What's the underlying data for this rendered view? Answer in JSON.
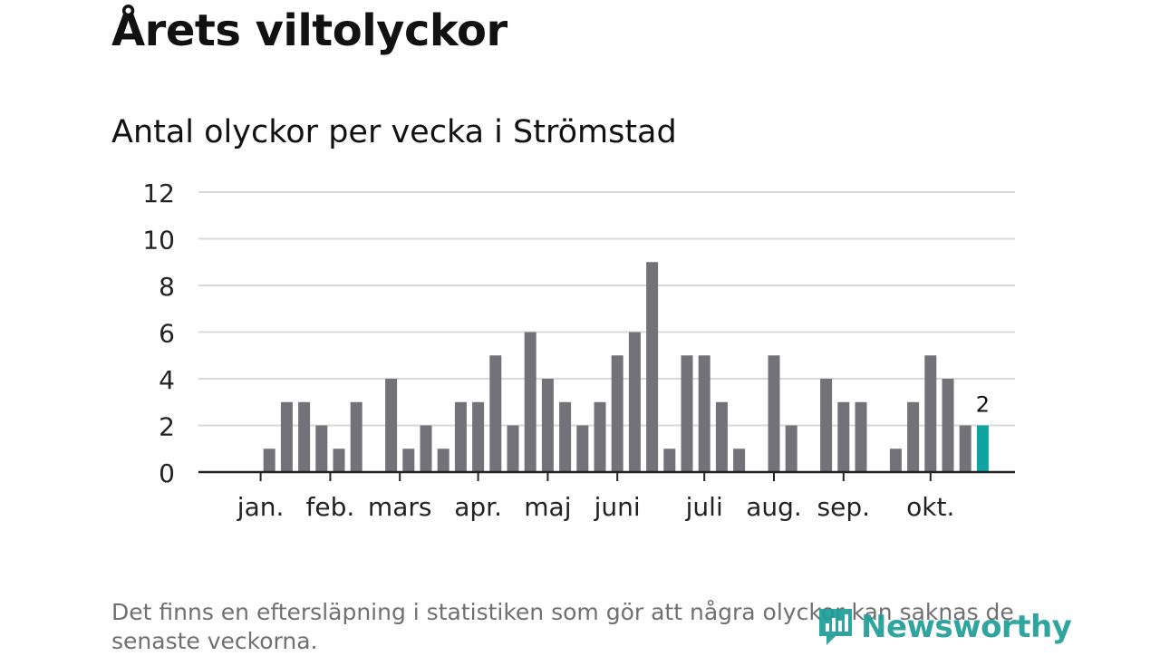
{
  "header": {
    "title": "Årets viltolyckor",
    "subtitle": "Antal olyckor per vecka i Strömstad"
  },
  "footer": {
    "note": "Det finns en eftersläpning i statistiken som gör att några olyckor kan saknas de senaste veckorna.",
    "brand": "Newsworthy"
  },
  "colors": {
    "bar": "#737278",
    "highlight": "#0ea5a0",
    "grid": "#d9d9d9",
    "axis": "#222222",
    "brand": "#1f9d96"
  },
  "chart_data": {
    "type": "bar",
    "title": "Antal olyckor per vecka i Strömstad",
    "xlabel": "",
    "ylabel": "",
    "ylim": [
      0,
      12
    ],
    "yticks": [
      0,
      2,
      4,
      6,
      8,
      10,
      12
    ],
    "grid": true,
    "weeks": [
      1,
      2,
      3,
      4,
      5,
      6,
      7,
      8,
      9,
      10,
      11,
      12,
      13,
      14,
      15,
      16,
      17,
      18,
      19,
      20,
      21,
      22,
      23,
      24,
      25,
      26,
      27,
      28,
      29,
      30,
      31,
      32,
      33,
      34,
      35,
      36,
      37,
      38,
      39,
      40,
      41,
      42,
      43,
      44,
      45,
      46,
      47
    ],
    "values": [
      0,
      0,
      0,
      1,
      3,
      3,
      2,
      1,
      3,
      0,
      4,
      1,
      2,
      1,
      3,
      3,
      5,
      2,
      6,
      4,
      3,
      2,
      3,
      5,
      6,
      9,
      1,
      5,
      5,
      3,
      1,
      0,
      5,
      2,
      0,
      4,
      3,
      3,
      0,
      1,
      3,
      5,
      4,
      2,
      2,
      0,
      0
    ],
    "month_labels": [
      {
        "label": "jan.",
        "week": 3.5
      },
      {
        "label": "feb.",
        "week": 7.5
      },
      {
        "label": "mars",
        "week": 11.5
      },
      {
        "label": "apr.",
        "week": 16
      },
      {
        "label": "maj",
        "week": 20
      },
      {
        "label": "juni",
        "week": 24
      },
      {
        "label": "juli",
        "week": 29
      },
      {
        "label": "aug.",
        "week": 33
      },
      {
        "label": "sep.",
        "week": 37
      },
      {
        "label": "okt.",
        "week": 42
      }
    ],
    "month_ticks": [
      3.5,
      7.5,
      11.5,
      16,
      20,
      24,
      29,
      33,
      37,
      42
    ],
    "highlight_week": 45,
    "highlight_label": "2"
  }
}
